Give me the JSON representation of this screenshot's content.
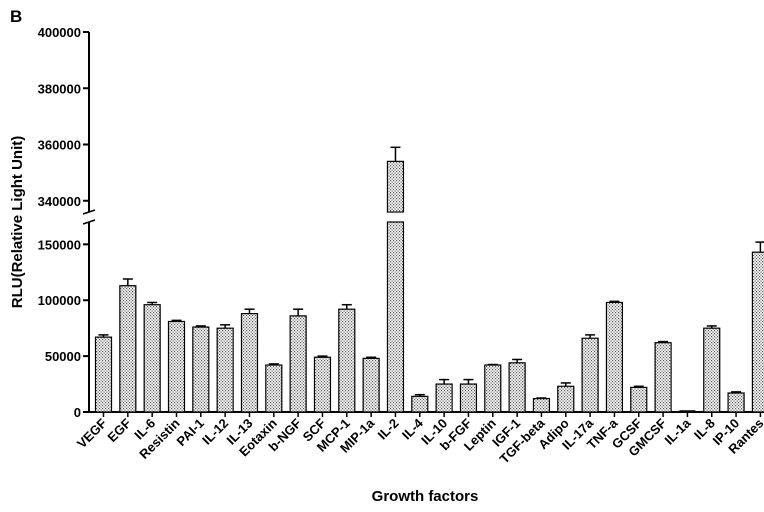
{
  "chart_data": {
    "type": "bar",
    "panel_label": "B",
    "xlabel": "Growth factors",
    "ylabel": "RLU(Relative Light Unit)",
    "broken_axis": true,
    "ylim_lower": [
      0,
      170000
    ],
    "ylim_upper": [
      336000,
      400000
    ],
    "yticks_lower": [
      0,
      50000,
      100000,
      150000
    ],
    "yticks_upper": [
      340000,
      360000,
      380000,
      400000
    ],
    "ytick_labels_lower": [
      "0",
      "50000",
      "100000",
      "150000"
    ],
    "ytick_labels_upper": [
      "340000",
      "360000",
      "380000",
      "400000"
    ],
    "categories": [
      "VEGF",
      "EGF",
      "IL-6",
      "Resistin",
      "PAI-1",
      "IL-12",
      "IL-13",
      "Eotaxin",
      "b-NGF",
      "SCF",
      "MCP-1",
      "MIP-1a",
      "IL-2",
      "IL-4",
      "IL-10",
      "b-FGF",
      "Leptin",
      "IGF-1",
      "TGF-beta",
      "Adipo",
      "IL-17a",
      "TNF-a",
      "GCSF",
      "GMCSF",
      "IL-1a",
      "IL-8",
      "IP-10",
      "Rantes"
    ],
    "values": [
      67000,
      113000,
      96000,
      81000,
      76000,
      75000,
      88000,
      42000,
      86000,
      49000,
      92000,
      48000,
      354000,
      14000,
      25000,
      25000,
      42000,
      44000,
      12000,
      23000,
      66000,
      98000,
      22000,
      62000,
      0,
      75000,
      17000,
      143000
    ],
    "errors": [
      2000,
      6000,
      2000,
      1000,
      1000,
      3000,
      4000,
      1000,
      6000,
      1000,
      4000,
      1000,
      5000,
      1500,
      4000,
      4000,
      500,
      3000,
      500,
      3000,
      3000,
      1000,
      1000,
      1000,
      0,
      2000,
      1000,
      9000
    ],
    "bar_pattern": "dotted",
    "grid": false,
    "legend": "none"
  }
}
